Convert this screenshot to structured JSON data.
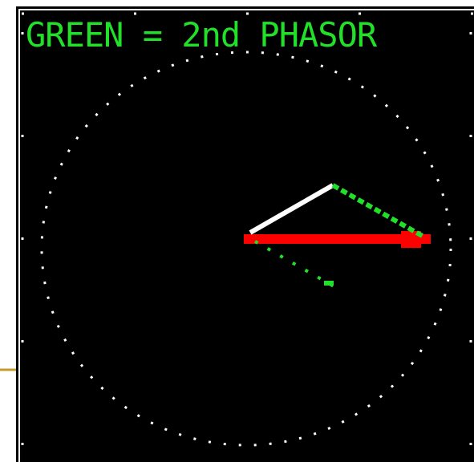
{
  "screen": {
    "title": "GREEN = 2nd PHASOR"
  }
}
